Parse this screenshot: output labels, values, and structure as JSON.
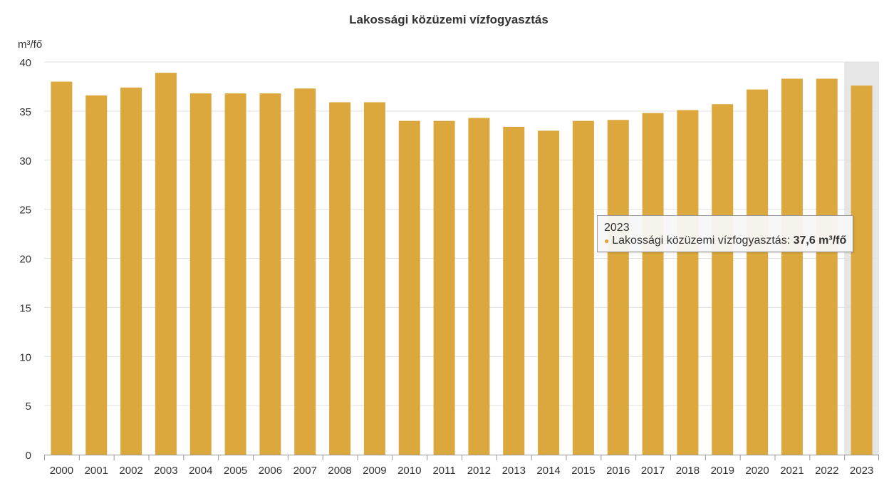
{
  "chart_data": {
    "type": "bar",
    "title": "Lakossági közüzemi vízfogyasztás",
    "ylabel": "m³/fő",
    "xlabel": "",
    "ylim": [
      0,
      40
    ],
    "yticks": [
      0,
      5,
      10,
      15,
      20,
      25,
      30,
      35,
      40
    ],
    "grid": true,
    "bar_color": "#dca73c",
    "highlight_color": "#e6e6e6",
    "categories": [
      "2000",
      "2001",
      "2002",
      "2003",
      "2004",
      "2005",
      "2006",
      "2007",
      "2008",
      "2009",
      "2010",
      "2011",
      "2012",
      "2013",
      "2014",
      "2015",
      "2016",
      "2017",
      "2018",
      "2019",
      "2020",
      "2021",
      "2022",
      "2023"
    ],
    "series": [
      {
        "name": "Lakossági közüzemi vízfogyasztás",
        "values": [
          38.0,
          36.6,
          37.4,
          38.9,
          36.8,
          36.8,
          36.8,
          37.3,
          35.9,
          35.9,
          34.0,
          34.0,
          34.3,
          33.4,
          33.0,
          34.0,
          34.1,
          34.8,
          35.1,
          35.7,
          37.2,
          38.3,
          38.3,
          37.6
        ]
      }
    ],
    "highlighted_category": "2023"
  },
  "tooltip": {
    "category": "2023",
    "series_label": "Lakossági közüzemi vízfogyasztás:",
    "value": "37,6 m³/fő"
  }
}
